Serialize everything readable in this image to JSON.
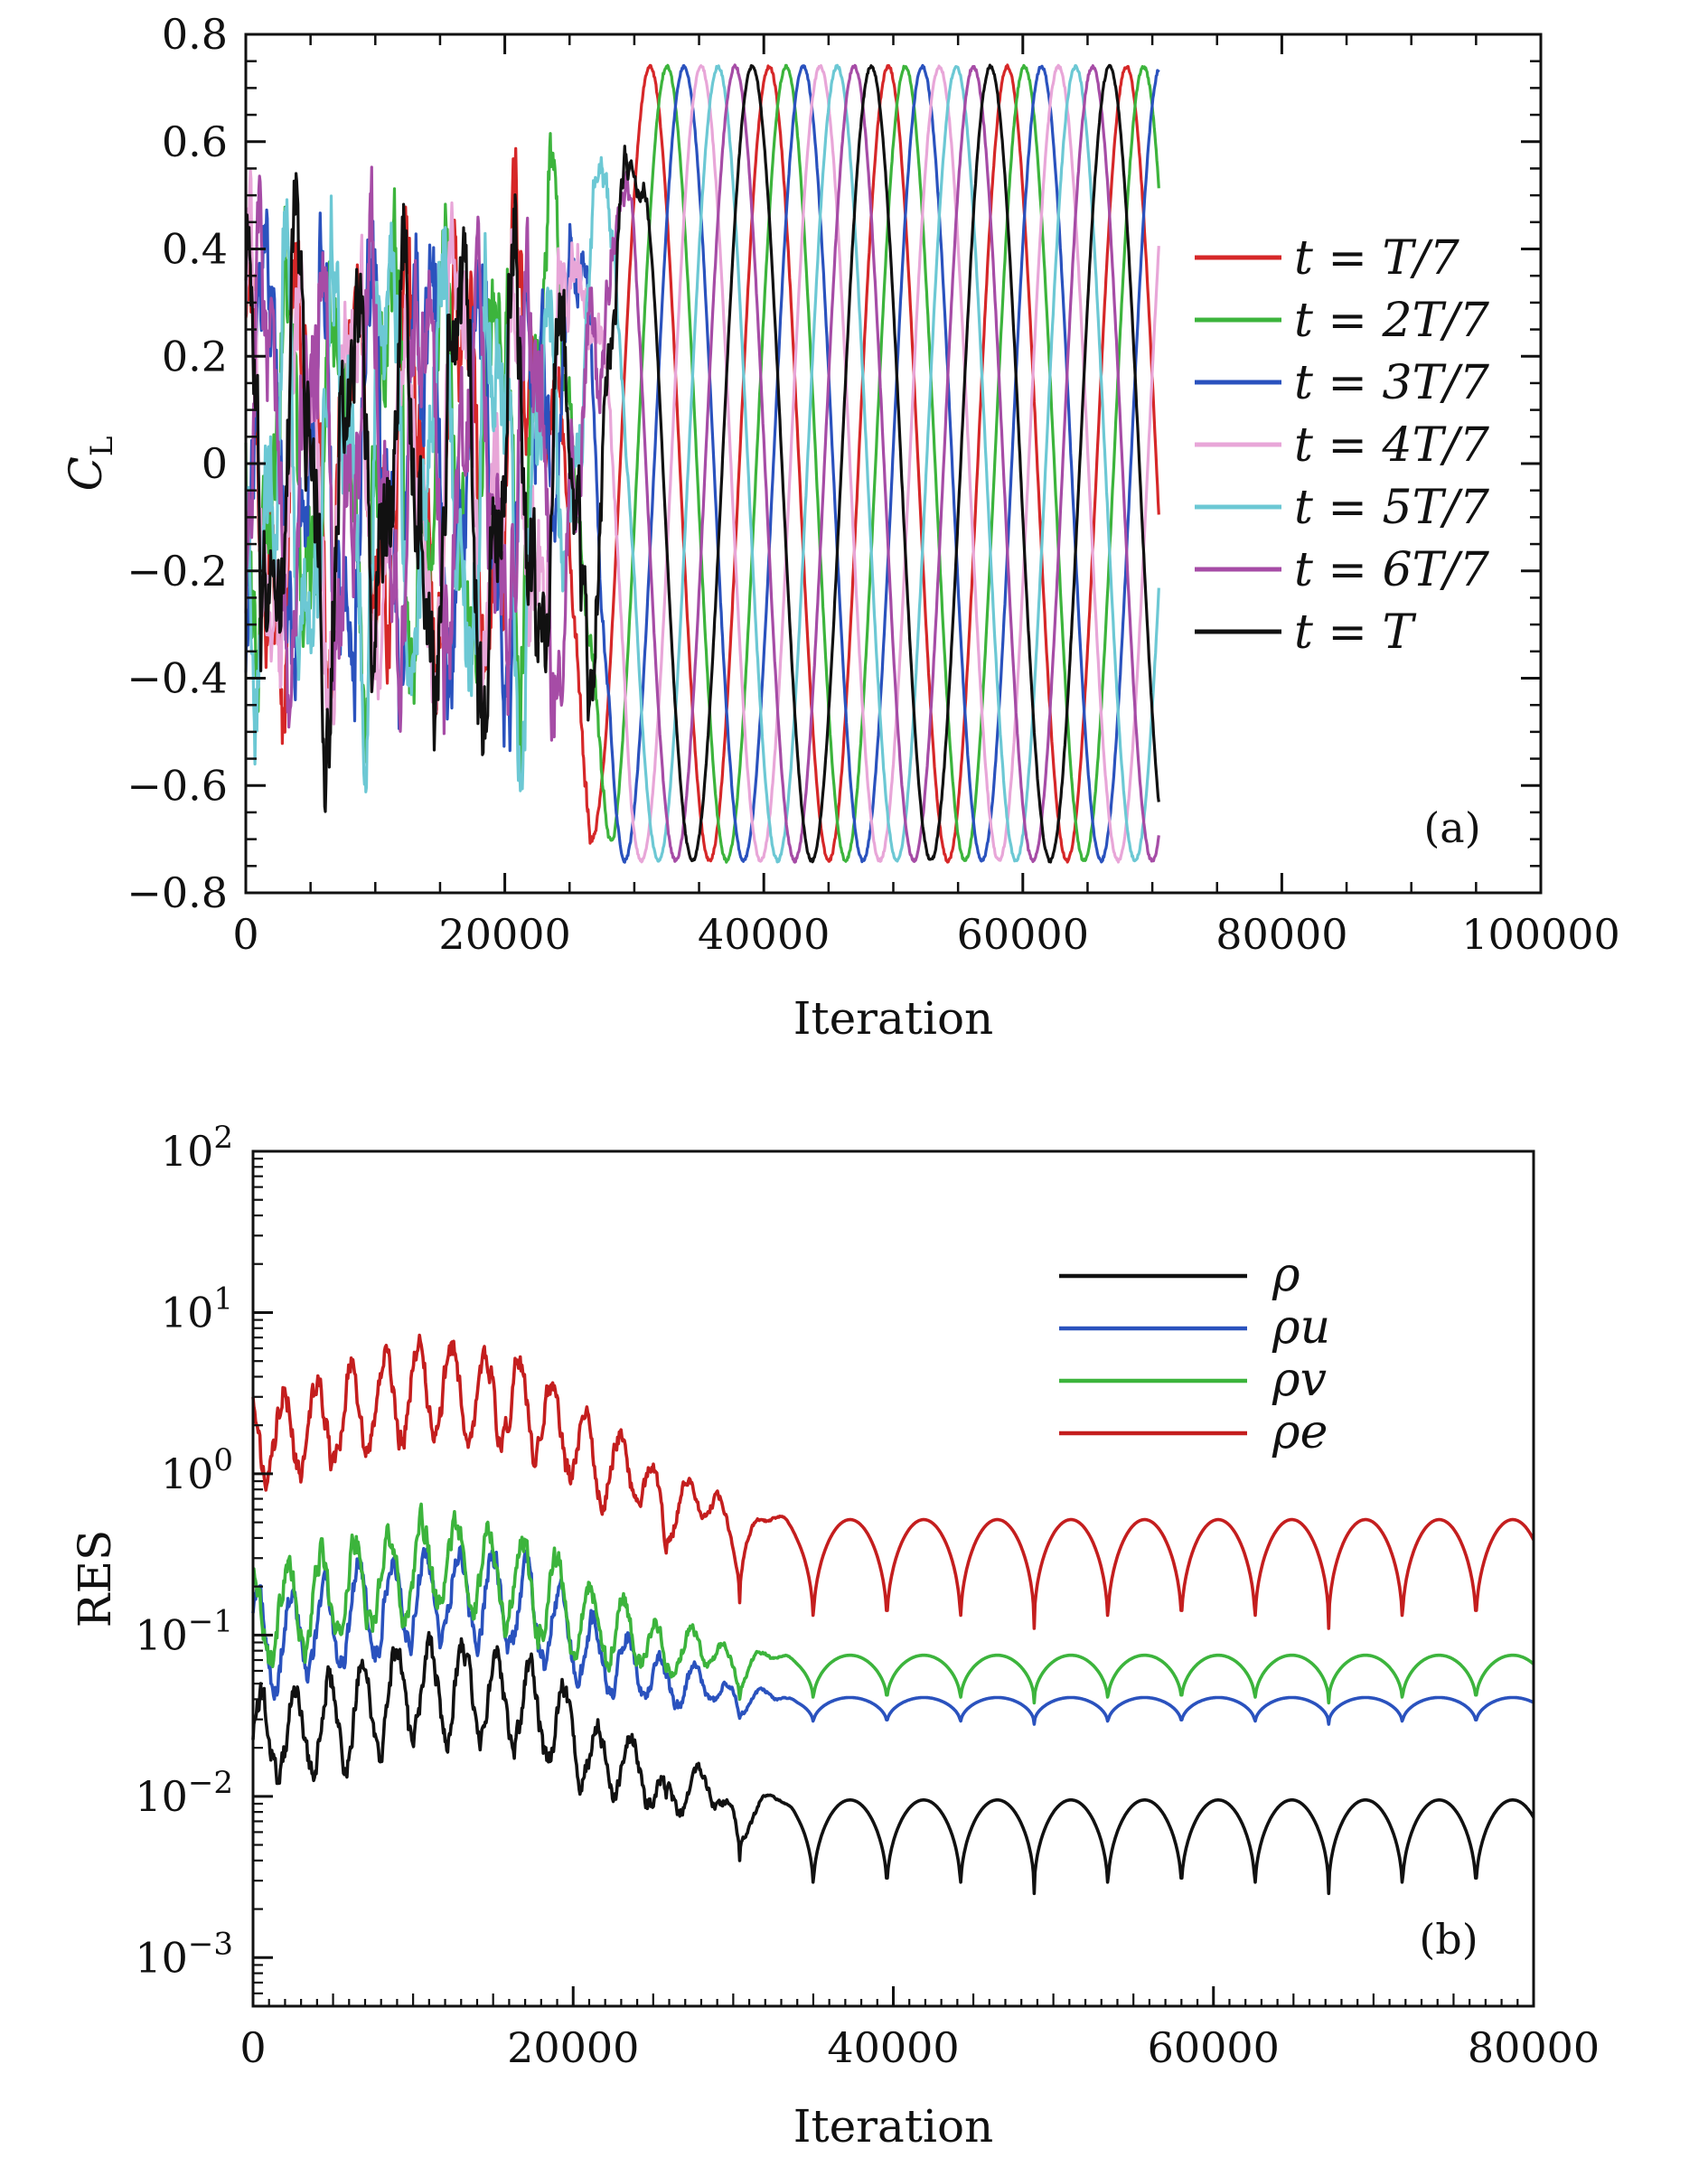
{
  "chart_data": [
    {
      "type": "line",
      "panel_label": "(a)",
      "xlabel": "Iteration",
      "ylabel": "C",
      "ylabel_sub": "L",
      "xlim": [
        0,
        100000
      ],
      "ylim": [
        -0.8,
        0.8
      ],
      "xticks": [
        0,
        20000,
        40000,
        60000,
        80000,
        100000
      ],
      "xtick_labels": [
        "0",
        "20000",
        "40000",
        "60000",
        "80000",
        "100000"
      ],
      "yticks": [
        0.8,
        0.6,
        0.4,
        0.2,
        0,
        -0.2,
        -0.4,
        -0.6,
        -0.8
      ],
      "ytick_labels": [
        "0.8",
        "0.6",
        "0.4",
        "0.2",
        "0",
        "−0.2",
        "−0.4",
        "−0.6",
        "−0.8"
      ],
      "grid": false,
      "legend_position": "right",
      "steady_amplitude": 0.74,
      "steady_period_iterations": 9200,
      "settle_iteration": 30000,
      "end_iteration": 70500,
      "series": [
        {
          "name": "t = T/7",
          "color": "#d62728",
          "phase_fraction": 0.1429
        },
        {
          "name": "t = 2T/7",
          "color": "#3cb43c",
          "phase_fraction": 0.2857
        },
        {
          "name": "t = 3T/7",
          "color": "#2a52be",
          "phase_fraction": 0.4286
        },
        {
          "name": "t = 4T/7",
          "color": "#e8a6d8",
          "phase_fraction": 0.5714
        },
        {
          "name": "t = 5T/7",
          "color": "#6cc8d4",
          "phase_fraction": 0.7143
        },
        {
          "name": "t = 6T/7",
          "color": "#a64ca6",
          "phase_fraction": 0.8571
        },
        {
          "name": "t = T",
          "color": "#111111",
          "phase_fraction": 1.0
        }
      ]
    },
    {
      "type": "line",
      "panel_label": "(b)",
      "xlabel": "Iteration",
      "ylabel": "RES",
      "xlim": [
        0,
        80000
      ],
      "yscale": "log",
      "ylim": [
        0.0005,
        100
      ],
      "xticks": [
        0,
        20000,
        40000,
        60000,
        80000
      ],
      "xtick_labels": [
        "0",
        "20000",
        "40000",
        "60000",
        "80000"
      ],
      "yticks": [
        100,
        10,
        1,
        0.1,
        0.01,
        0.001
      ],
      "ytick_base": "10",
      "ytick_exponents": [
        "2",
        "1",
        "0",
        "−1",
        "−2",
        "−3"
      ],
      "grid": false,
      "legend_position": "top-right",
      "steady_period_iterations": 4600,
      "series": [
        {
          "name": "ρ",
          "color": "#111111",
          "peak": 0.0095,
          "trough": 0.0025,
          "transient_level": 0.02
        },
        {
          "name": "ρu",
          "color": "#2a52be",
          "peak": 0.041,
          "trough": 0.028,
          "transient_level": 0.08
        },
        {
          "name": "ρv",
          "color": "#3cb43c",
          "peak": 0.075,
          "trough": 0.038,
          "transient_level": 0.12
        },
        {
          "name": "ρe",
          "color": "#c41e1e",
          "peak": 0.52,
          "trough": 0.11,
          "transient_level": 1.5
        }
      ]
    }
  ]
}
